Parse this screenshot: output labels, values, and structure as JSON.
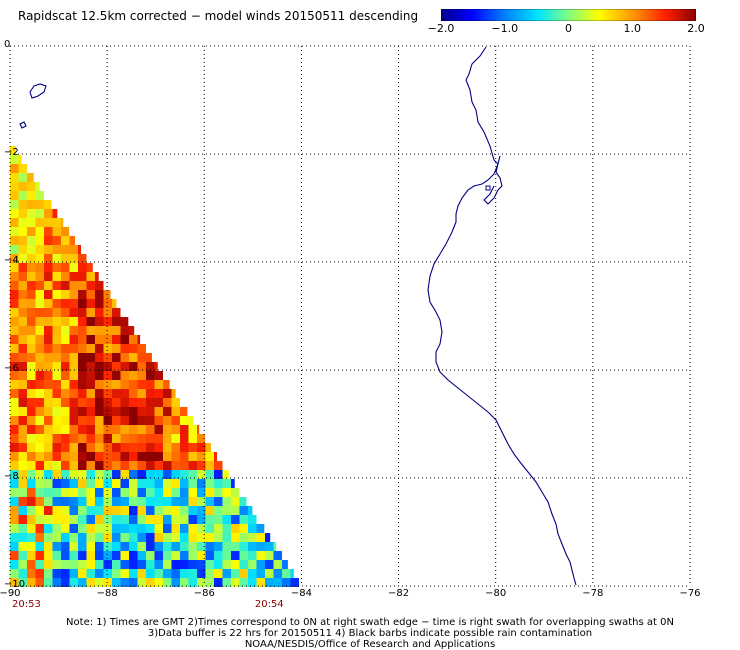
{
  "title": "Rapidscat 12.5km corrected − model winds 20150511 descending",
  "colorbar": {
    "labels": [
      {
        "text": "−2.0",
        "value": -2.0
      },
      {
        "text": "−1.0",
        "value": -1.0
      },
      {
        "text": "0",
        "value": 0
      },
      {
        "text": "1.0",
        "value": 1.0
      },
      {
        "text": "2.0",
        "value": 2.0
      }
    ],
    "range": [
      -2.0,
      2.0
    ],
    "colors": [
      "#00008b",
      "#0000ff",
      "#0080ff",
      "#00e5ff",
      "#7fff7f",
      "#ffff00",
      "#ff9900",
      "#ff2000",
      "#8b0000"
    ]
  },
  "map": {
    "lon_range": [
      -90,
      -76
    ],
    "lat_range": [
      -10,
      0
    ],
    "lon_ticks": [
      {
        "text": "−90",
        "value": -90
      },
      {
        "text": "−88",
        "value": -88
      },
      {
        "text": "−86",
        "value": -86
      },
      {
        "text": "−84",
        "value": -84
      },
      {
        "text": "−82",
        "value": -82
      },
      {
        "text": "−80",
        "value": -80
      },
      {
        "text": "−78",
        "value": -78
      },
      {
        "text": "−76",
        "value": -76
      }
    ],
    "lat_ticks": [
      {
        "text": "0",
        "value": 0
      },
      {
        "text": "−2",
        "value": -2
      },
      {
        "text": "−4",
        "value": -4
      },
      {
        "text": "−6",
        "value": -6
      },
      {
        "text": "−8",
        "value": -8
      },
      {
        "text": "−10",
        "value": -10
      }
    ],
    "grid": "dotted",
    "coast_color": "#000080",
    "swath_times": [
      {
        "text": "20:53",
        "lon": -90
      },
      {
        "text": "20:54",
        "lon": -85
      }
    ]
  },
  "notes": [
    "Note: 1) Times are GMT 2)Times correspond to 0N at right swath edge − time is right swath for overlapping swaths at 0N",
    "3)Data buffer is 22 hrs for 20150511 4) Black barbs indicate possible rain contamination",
    "NOAA/NESDIS/Office of Research and Applications"
  ]
}
